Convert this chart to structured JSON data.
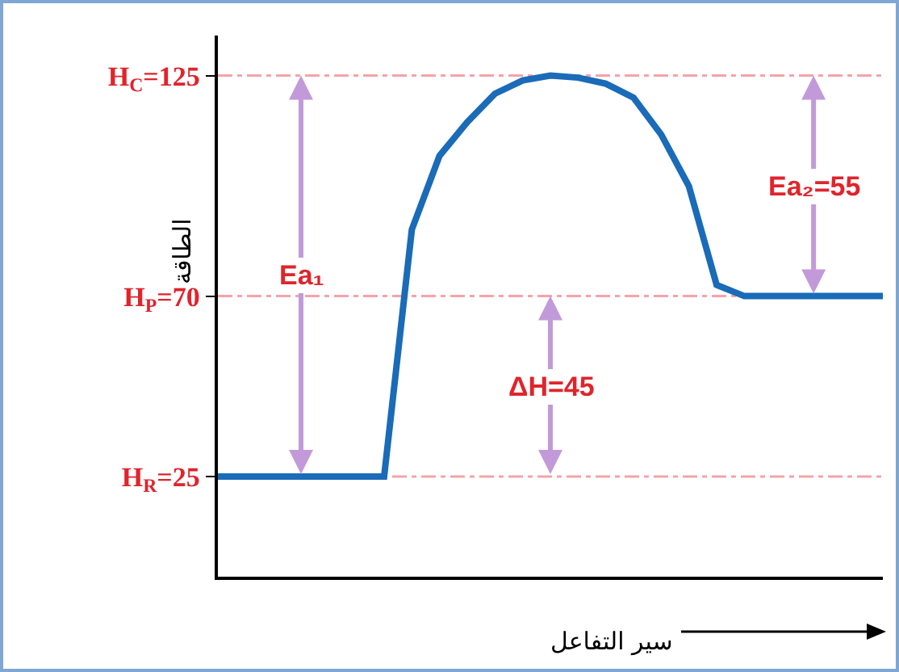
{
  "chart_data": {
    "type": "line",
    "ylabel": "الطاقة",
    "xlabel": "سير التفاعل",
    "categories": [
      null,
      null,
      null,
      null,
      null,
      null,
      null,
      null,
      null,
      null,
      null,
      null,
      null,
      null,
      null,
      null,
      null,
      null,
      null,
      null,
      null,
      null,
      null,
      null,
      null
    ],
    "series": [
      {
        "color": "#1a6bb8",
        "values": [
          25,
          25,
          25,
          25,
          25,
          25,
          25,
          86.6,
          105,
          113.4,
          120.5,
          123.8,
          125,
          124.5,
          123,
          119.5,
          110.3,
          97.4,
          72.8,
          70,
          70,
          70,
          70,
          70,
          70
        ]
      }
    ],
    "ylim": [
      0,
      135
    ],
    "yticks": [
      {
        "value": 25,
        "label": "H$_{R}$=25"
      },
      {
        "value": 70,
        "label": "H$_{P}$=70"
      },
      {
        "value": 125,
        "label": "H$_{C}$=125"
      }
    ],
    "grid": false,
    "marker": "none",
    "line_style": "solid",
    "ref_lines": [
      {
        "axis": "y",
        "value": 125,
        "color": "#f4a3aa",
        "line_style": "dashed"
      },
      {
        "axis": "y",
        "value": 70,
        "color": "#f4a3aa",
        "line_style": "dashed"
      },
      {
        "axis": "y",
        "value": 25,
        "color": "#f4a3aa",
        "line_style": "dashed"
      }
    ],
    "annotations": [
      "Ea₁",
      "ΔH=45",
      "Ea₂=55"
    ]
  }
}
